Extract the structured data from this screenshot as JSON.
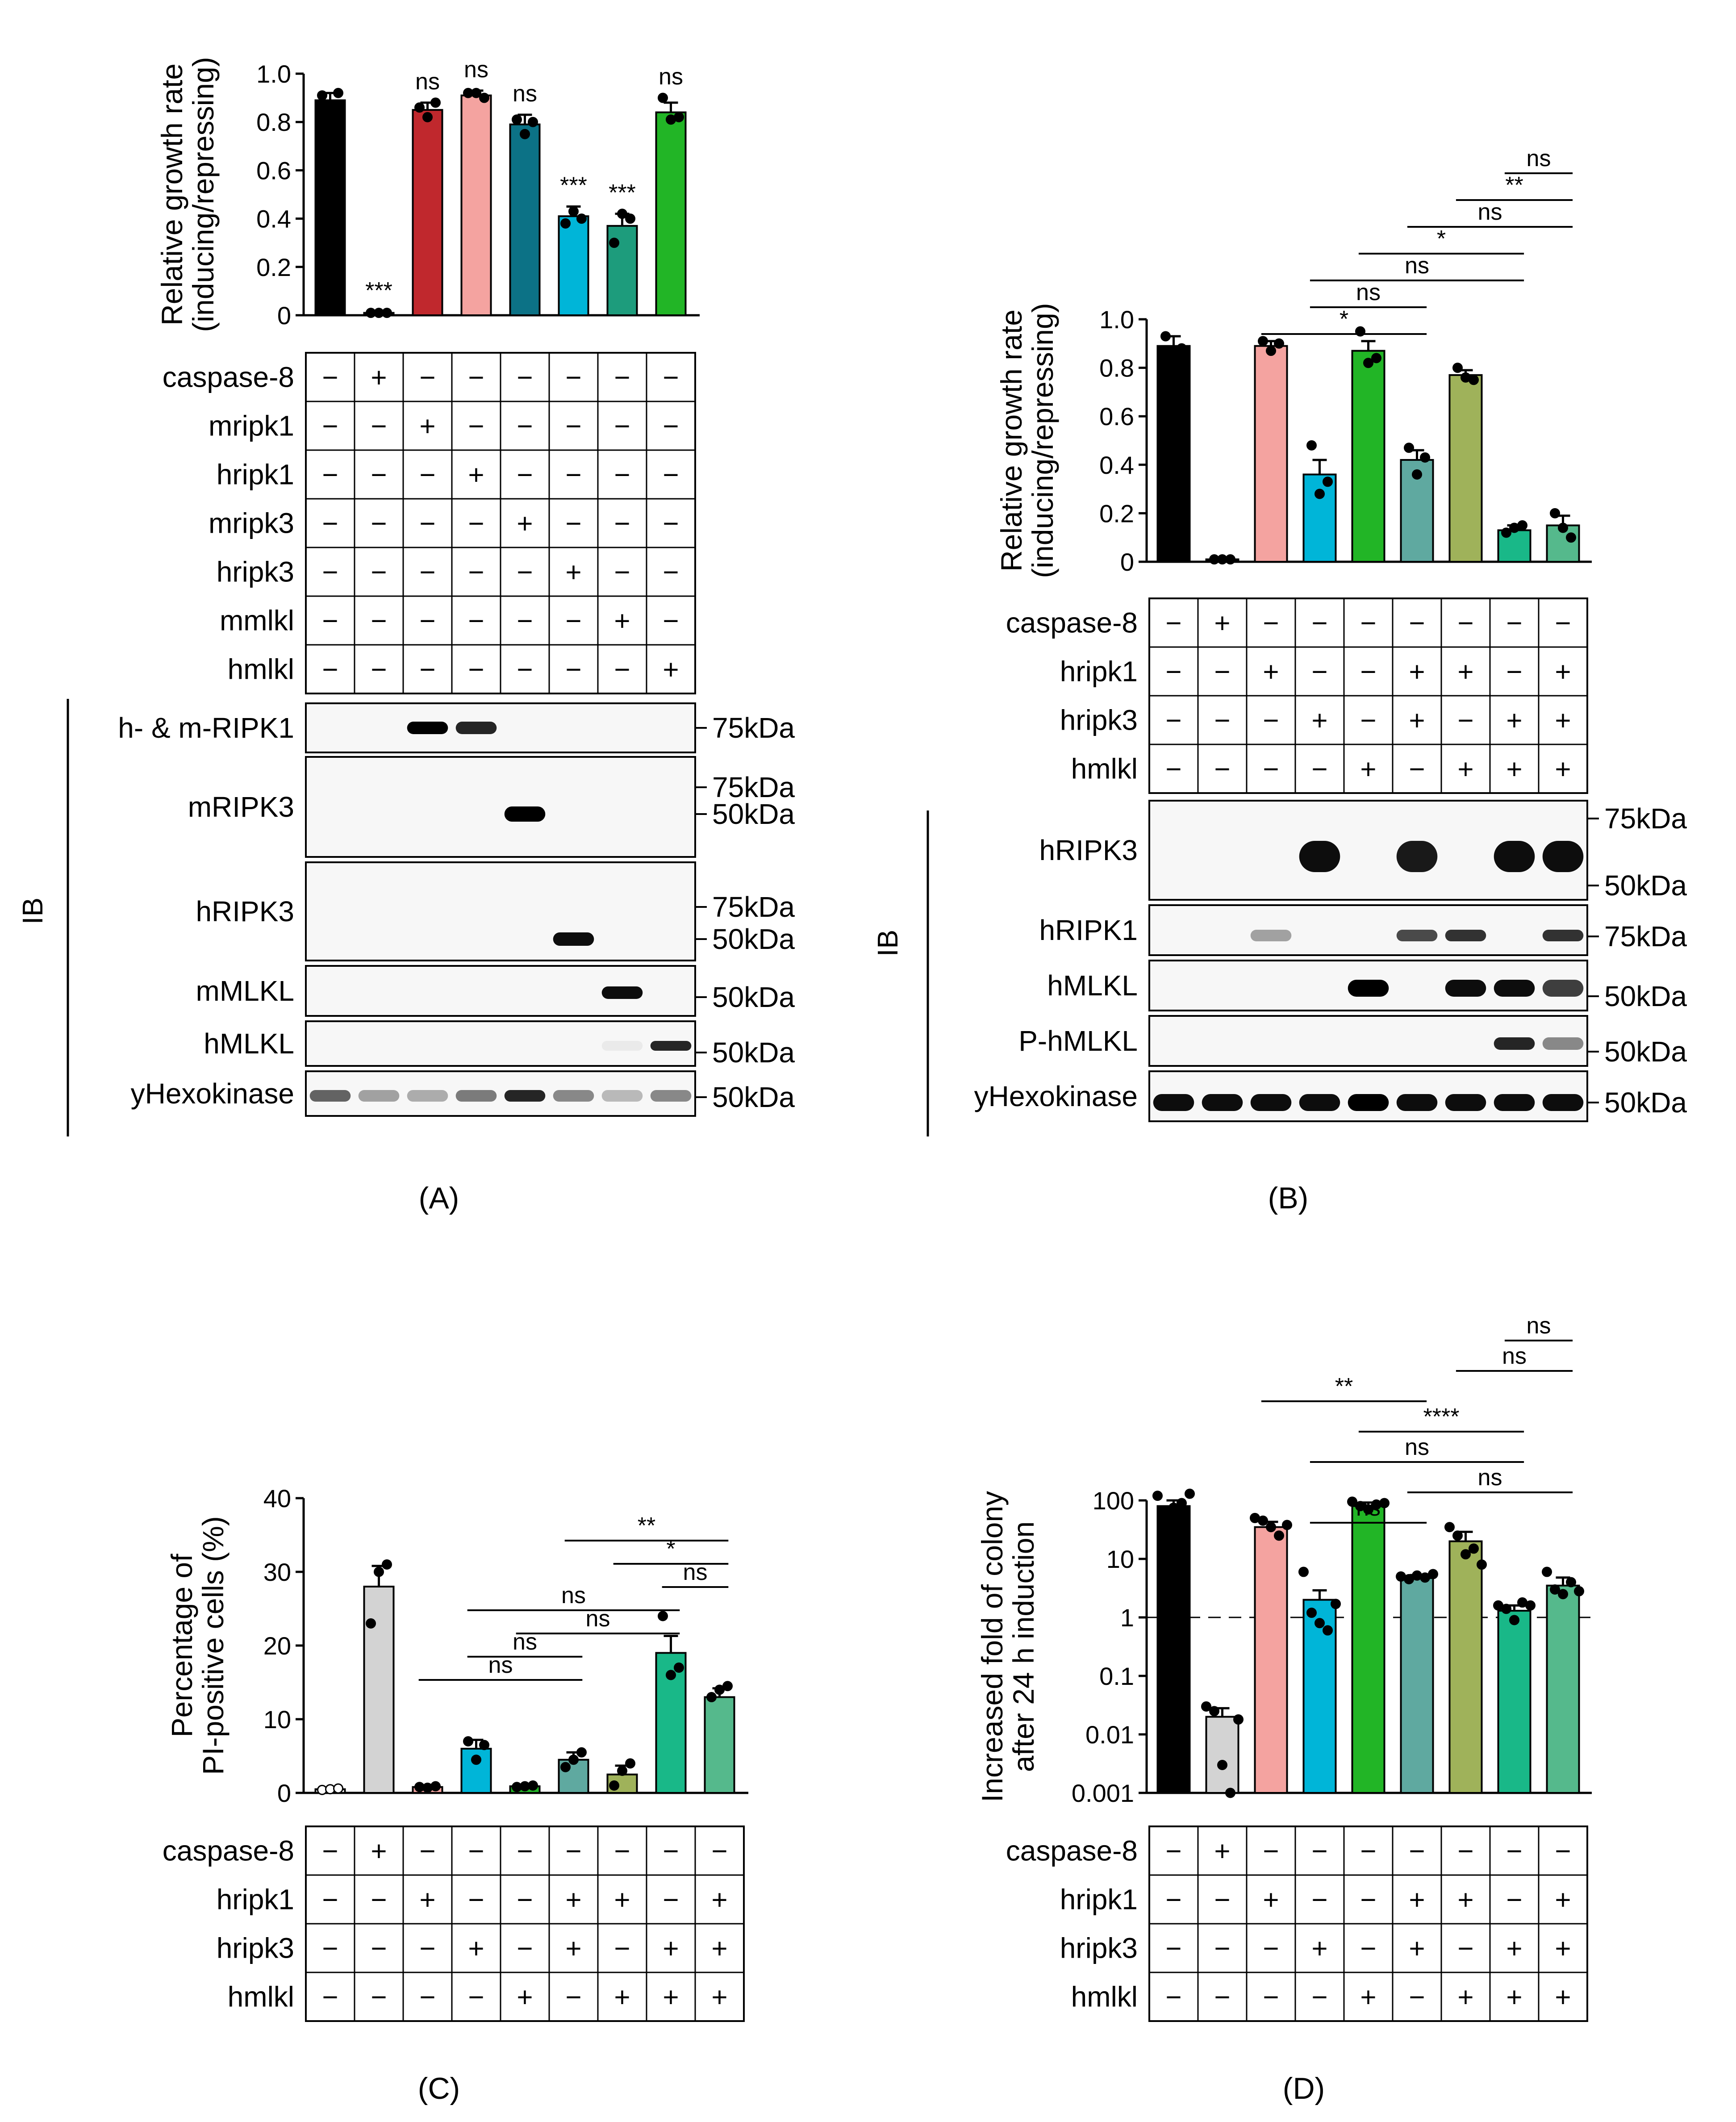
{
  "figure": {
    "panel_labels": [
      "(A)",
      "(B)",
      "(C)",
      "(D)"
    ],
    "ib_label": "IB",
    "plus": "+",
    "minus": "−"
  },
  "panel_a": {
    "condition_rows": [
      "caspase-8",
      "mripk1",
      "hripk1",
      "mripk3",
      "hripk3",
      "mmlkl",
      "hmlkl"
    ],
    "conditions": [
      [
        0,
        1,
        0,
        0,
        0,
        0,
        0,
        0
      ],
      [
        0,
        0,
        1,
        0,
        0,
        0,
        0,
        0
      ],
      [
        0,
        0,
        0,
        1,
        0,
        0,
        0,
        0
      ],
      [
        0,
        0,
        0,
        0,
        1,
        0,
        0,
        0
      ],
      [
        0,
        0,
        0,
        0,
        0,
        1,
        0,
        0
      ],
      [
        0,
        0,
        0,
        0,
        0,
        0,
        1,
        0
      ],
      [
        0,
        0,
        0,
        0,
        0,
        0,
        0,
        1
      ]
    ],
    "blots": [
      {
        "label": "h- & m-RIPK1",
        "kda": [
          "75kDa"
        ],
        "bands": [
          0,
          0,
          1.0,
          0.85,
          0,
          0,
          0,
          0
        ]
      },
      {
        "label": "mRIPK3",
        "kda": [
          "75kDa",
          "50kDa"
        ],
        "bands": [
          0,
          0,
          0,
          0,
          1.0,
          0,
          0,
          0
        ]
      },
      {
        "label": "hRIPK3",
        "kda": [
          "75kDa",
          "50kDa"
        ],
        "bands": [
          0,
          0,
          0,
          0,
          0,
          0.95,
          0,
          0
        ]
      },
      {
        "label": "mMLKL",
        "kda": [
          "50kDa"
        ],
        "bands": [
          0,
          0,
          0,
          0,
          0,
          0,
          0.95,
          0
        ]
      },
      {
        "label": "hMLKL",
        "kda": [
          "50kDa"
        ],
        "bands": [
          0,
          0,
          0,
          0,
          0,
          0,
          0.05,
          0.85
        ]
      },
      {
        "label": "yHexokinase",
        "kda": [
          "50kDa"
        ],
        "bands": [
          0.6,
          0.35,
          0.3,
          0.5,
          0.85,
          0.45,
          0.25,
          0.45
        ]
      }
    ]
  },
  "panel_b": {
    "condition_rows": [
      "caspase-8",
      "hripk1",
      "hripk3",
      "hmlkl"
    ],
    "conditions": [
      [
        0,
        1,
        0,
        0,
        0,
        0,
        0,
        0,
        0
      ],
      [
        0,
        0,
        1,
        0,
        0,
        1,
        1,
        0,
        1
      ],
      [
        0,
        0,
        0,
        1,
        0,
        1,
        0,
        1,
        1
      ],
      [
        0,
        0,
        0,
        0,
        1,
        0,
        1,
        1,
        1
      ]
    ],
    "blots": [
      {
        "label": "hRIPK3",
        "kda": [
          "75kDa",
          "50kDa"
        ],
        "bands": [
          0,
          0,
          0,
          0.95,
          0,
          0.9,
          0,
          0.95,
          0.95
        ]
      },
      {
        "label": "hRIPK1",
        "kda": [
          "75kDa"
        ],
        "bands": [
          0,
          0,
          0.35,
          0,
          0,
          0.7,
          0.8,
          0,
          0.8
        ]
      },
      {
        "label": "hMLKL",
        "kda": [
          "50kDa"
        ],
        "bands": [
          0,
          0,
          0,
          0,
          1.0,
          0,
          0.95,
          0.95,
          0.75
        ]
      },
      {
        "label": "P-hMLKL",
        "kda": [
          "50kDa"
        ],
        "bands": [
          0,
          0,
          0,
          0,
          0,
          0,
          0,
          0.85,
          0.45
        ]
      },
      {
        "label": "yHexokinase",
        "kda": [
          "50kDa"
        ],
        "bands": [
          0.95,
          0.95,
          0.95,
          0.95,
          1.0,
          0.95,
          0.95,
          0.95,
          0.95
        ]
      }
    ]
  },
  "panel_c": {
    "condition_rows": [
      "caspase-8",
      "hripk1",
      "hripk3",
      "hmlkl"
    ],
    "conditions": [
      [
        0,
        1,
        0,
        0,
        0,
        0,
        0,
        0,
        0
      ],
      [
        0,
        0,
        1,
        0,
        0,
        1,
        1,
        0,
        1
      ],
      [
        0,
        0,
        0,
        1,
        0,
        1,
        0,
        1,
        1
      ],
      [
        0,
        0,
        0,
        0,
        1,
        0,
        1,
        1,
        1
      ]
    ]
  },
  "panel_d": {
    "condition_rows": [
      "caspase-8",
      "hripk1",
      "hripk3",
      "hmlkl"
    ],
    "conditions": [
      [
        0,
        1,
        0,
        0,
        0,
        0,
        0,
        0,
        0
      ],
      [
        0,
        0,
        1,
        0,
        0,
        1,
        1,
        0,
        1
      ],
      [
        0,
        0,
        0,
        1,
        0,
        1,
        0,
        1,
        1
      ],
      [
        0,
        0,
        0,
        0,
        1,
        0,
        1,
        1,
        1
      ]
    ]
  },
  "chart_data": [
    {
      "panel": "A",
      "type": "bar",
      "ylabel": [
        "Relative growth rate",
        "(inducing/repressing)"
      ],
      "ylim": [
        0,
        1.0
      ],
      "ticks": [
        0,
        0.2,
        0.4,
        0.6,
        0.8,
        1.0
      ],
      "tick_labels": [
        "0",
        "0.2",
        "0.4",
        "0.6",
        "0.8",
        "1.0"
      ],
      "values": [
        0.89,
        0.01,
        0.85,
        0.91,
        0.79,
        0.41,
        0.37,
        0.84
      ],
      "errors": [
        0.03,
        0.005,
        0.03,
        0.02,
        0.04,
        0.04,
        0.05,
        0.04
      ],
      "points": [
        [
          0.91,
          0.85,
          0.92
        ],
        [
          0.01,
          0.01,
          0.01
        ],
        [
          0.86,
          0.82,
          0.88
        ],
        [
          0.92,
          0.92,
          0.9
        ],
        [
          0.81,
          0.75,
          0.8
        ],
        [
          0.38,
          0.43,
          0.4
        ],
        [
          0.3,
          0.42,
          0.4
        ],
        [
          0.9,
          0.81,
          0.82
        ]
      ],
      "colors": [
        "#000000",
        "#000000",
        "#c0282d",
        "#f4a3a0",
        "#0c7286",
        "#00b5d8",
        "#1d9c7c",
        "#22b526"
      ],
      "annotations": [
        "",
        "***",
        "ns",
        "ns",
        "ns",
        "***",
        "***",
        "ns"
      ]
    },
    {
      "panel": "B",
      "type": "bar",
      "ylabel": [
        "Relative growth rate",
        "(inducing/repressing)"
      ],
      "ylim": [
        0,
        1.0
      ],
      "ticks": [
        0,
        0.2,
        0.4,
        0.6,
        0.8,
        1.0
      ],
      "tick_labels": [
        "0",
        "0.2",
        "0.4",
        "0.6",
        "0.8",
        "1.0"
      ],
      "values": [
        0.89,
        0.01,
        0.89,
        0.36,
        0.87,
        0.42,
        0.77,
        0.13,
        0.15
      ],
      "errors": [
        0.04,
        0.003,
        0.02,
        0.06,
        0.04,
        0.04,
        0.02,
        0.02,
        0.04
      ],
      "points": [
        [
          0.93,
          0.85,
          0.88
        ],
        [
          0.01,
          0.01,
          0.01
        ],
        [
          0.91,
          0.87,
          0.9
        ],
        [
          0.48,
          0.28,
          0.33
        ],
        [
          0.95,
          0.82,
          0.84
        ],
        [
          0.47,
          0.36,
          0.43
        ],
        [
          0.8,
          0.76,
          0.75
        ],
        [
          0.12,
          0.14,
          0.15
        ],
        [
          0.2,
          0.14,
          0.1
        ]
      ],
      "colors": [
        "#000000",
        "#000000",
        "#f4a3a0",
        "#00b5d8",
        "#22b526",
        "#5fa9a0",
        "#9fb25a",
        "#19b888",
        "#55b98c"
      ],
      "significance": [
        {
          "from": 2,
          "to": 5,
          "label": "*"
        },
        {
          "from": 3,
          "to": 5,
          "label": "ns"
        },
        {
          "from": 3,
          "to": 7,
          "label": "ns"
        },
        {
          "from": 4,
          "to": 7,
          "label": "*"
        },
        {
          "from": 5,
          "to": 8,
          "label": "ns"
        },
        {
          "from": 6,
          "to": 8,
          "label": "**"
        },
        {
          "from": 7,
          "to": 8,
          "label": "ns"
        }
      ]
    },
    {
      "panel": "C",
      "type": "bar",
      "ylabel": [
        "Percentage of",
        "PI-positive cells (%)"
      ],
      "ylim": [
        0,
        40
      ],
      "ticks": [
        0,
        10,
        20,
        30,
        40
      ],
      "tick_labels": [
        "0",
        "10",
        "20",
        "30",
        "40"
      ],
      "values": [
        0.5,
        28,
        0.8,
        6,
        0.9,
        4.5,
        2.5,
        19,
        13
      ],
      "errors": [
        0.2,
        2.8,
        0.2,
        1.2,
        0.2,
        1.0,
        1.2,
        2.3,
        1.2
      ],
      "points": [
        [
          0.4,
          0.5,
          0.6
        ],
        [
          23,
          30,
          31
        ],
        [
          0.8,
          0.7,
          0.9
        ],
        [
          7,
          4.5,
          6.5
        ],
        [
          0.8,
          0.9,
          1.0
        ],
        [
          3.5,
          4.5,
          5.5
        ],
        [
          1,
          3,
          4
        ],
        [
          24,
          16,
          17
        ],
        [
          13,
          14,
          14.5
        ]
      ],
      "colors": [
        "#ffffff",
        "#d3d3d3",
        "#f4a3a0",
        "#00b5d8",
        "#22b526",
        "#5fa9a0",
        "#9fb25a",
        "#19b888",
        "#55b98c"
      ],
      "significance": [
        {
          "from": 2,
          "to": 5,
          "label": "ns"
        },
        {
          "from": 3,
          "to": 5,
          "label": "ns"
        },
        {
          "from": 4,
          "to": 7,
          "label": "ns"
        },
        {
          "from": 3,
          "to": 7,
          "label": "ns"
        },
        {
          "from": 7,
          "to": 8,
          "label": "ns"
        },
        {
          "from": 6,
          "to": 8,
          "label": "*"
        },
        {
          "from": 5,
          "to": 8,
          "label": "**"
        }
      ]
    },
    {
      "panel": "D",
      "type": "bar",
      "scale": "log",
      "ylabel": [
        "Increased fold of colony",
        "after 24 h induction"
      ],
      "ylim": [
        0.001,
        100
      ],
      "ticks": [
        0.001,
        0.01,
        0.1,
        1,
        10,
        100
      ],
      "tick_labels": [
        "0.001",
        "0.01",
        "0.1",
        "1",
        "10",
        "100"
      ],
      "reference_line": 1,
      "values": [
        80,
        0.02,
        35,
        2,
        80,
        4.7,
        20,
        1.3,
        3.5
      ],
      "errors": [
        20,
        0.008,
        8,
        0.9,
        12,
        0.6,
        9,
        0.3,
        1.3
      ],
      "points": [
        [
          120,
          60,
          75,
          90,
          130
        ],
        [
          0.03,
          0.025,
          0.003,
          0.001,
          0.018
        ],
        [
          50,
          45,
          35,
          25,
          38
        ],
        [
          6,
          1.2,
          0.8,
          0.6,
          1.7
        ],
        [
          95,
          80,
          70,
          85,
          90
        ],
        [
          5,
          4.5,
          5.2,
          4.8,
          5.5
        ],
        [
          35,
          25,
          12,
          15,
          8
        ],
        [
          1.6,
          1.4,
          0.9,
          1.8,
          1.6
        ],
        [
          6,
          3,
          2.5,
          4,
          2.8
        ]
      ],
      "colors": [
        "#000000",
        "#d3d3d3",
        "#f4a3a0",
        "#00b5d8",
        "#22b526",
        "#5fa9a0",
        "#9fb25a",
        "#19b888",
        "#55b98c"
      ],
      "significance": [
        {
          "from": 3,
          "to": 5,
          "label": "ns"
        },
        {
          "from": 5,
          "to": 8,
          "label": "ns"
        },
        {
          "from": 3,
          "to": 7,
          "label": "ns"
        },
        {
          "from": 4,
          "to": 7,
          "label": "****"
        },
        {
          "from": 2,
          "to": 5,
          "label": "**"
        },
        {
          "from": 6,
          "to": 8,
          "label": "ns"
        },
        {
          "from": 7,
          "to": 8,
          "label": "ns"
        }
      ]
    }
  ]
}
